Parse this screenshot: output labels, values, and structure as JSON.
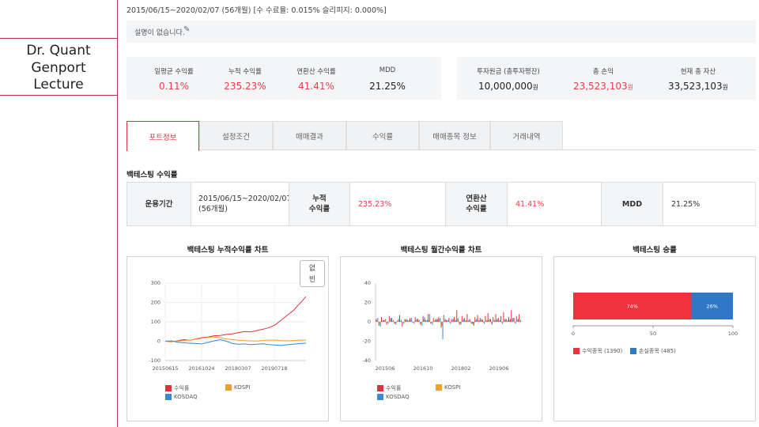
{
  "sidebar": {
    "lecture_lines": [
      "Dr. Quant",
      "Genport",
      "Lecture"
    ]
  },
  "header": {
    "period_text": "2015/06/15~2020/02/07 (56개월) [수 수료율: 0.015% 슬리피지: 0.000%]",
    "description": "설명이 없습니다.",
    "pencil_icon": "pencil-icon"
  },
  "summary_left": [
    {
      "label": "일평균 수익률",
      "value": "0.11%",
      "color": "red"
    },
    {
      "label": "누적 수익률",
      "value": "235.23%",
      "color": "red"
    },
    {
      "label": "연환산 수익률",
      "value": "41.41%",
      "color": "red"
    },
    {
      "label": "MDD",
      "value": "21.25%",
      "color": "dark"
    }
  ],
  "summary_right": [
    {
      "label": "투자원금 (총투자평잔)",
      "value": "10,000,000",
      "unit": "원",
      "color": "dark"
    },
    {
      "label": "총 손익",
      "value": "23,523,103",
      "unit": "원",
      "color": "red"
    },
    {
      "label": "현재 총 자산",
      "value": "33,523,103",
      "unit": "원",
      "color": "dark"
    }
  ],
  "tabs": [
    "포트정보",
    "설정조건",
    "매매결과",
    "수익률",
    "매매종목 정보",
    "거래내역"
  ],
  "active_tab": "포트정보",
  "section_title": "백테스팅 수익률",
  "backtest_table": {
    "period_label": "운용기간",
    "period_value": "2015/06/15~2020/02/07",
    "period_months": "(56개월)",
    "cum_label_1": "누적",
    "cum_label_2": "수익률",
    "cum_value": "235.23%",
    "ann_label_1": "연환산",
    "ann_label_2": "수익률",
    "ann_value": "41.41%",
    "mdd_label": "MDD",
    "mdd_value": "21.25%"
  },
  "charts": {
    "cumulative_title": "백테스팅 누적수익률 차트",
    "monthly_title": "백테스팅 월간수익률 차트",
    "winrate_title": "백테스팅 승률",
    "zoom_label_1": "없",
    "zoom_label_2": "빈",
    "colors": {
      "returns": "#e0323e",
      "kospi": "#f0a030",
      "kosdaq": "#3a8ad0",
      "win": "#f0323e",
      "loss": "#2f78c8"
    }
  },
  "chart_data": [
    {
      "type": "line",
      "title": "백테스팅 누적수익률 차트",
      "x_ticks": [
        "20150615",
        "20161024",
        "20180307",
        "20190718"
      ],
      "y_ticks": [
        "300",
        "200",
        "100",
        "0",
        "-100"
      ],
      "ylim": [
        -100,
        300
      ],
      "series": [
        {
          "name": "수익률",
          "values": [
            0,
            -3,
            2,
            8,
            5,
            12,
            18,
            22,
            28,
            30,
            35,
            38,
            45,
            50,
            48,
            55,
            62,
            70,
            85,
            110,
            135,
            160,
            195,
            230
          ]
        },
        {
          "name": "KOSPI",
          "values": [
            0,
            -2,
            0,
            3,
            6,
            10,
            15,
            20,
            22,
            18,
            12,
            8,
            5,
            3,
            2,
            1,
            4,
            6,
            5,
            3,
            2,
            4,
            5,
            6
          ]
        },
        {
          "name": "KOSDAQ",
          "values": [
            0,
            2,
            -5,
            -8,
            -10,
            -12,
            -14,
            -6,
            2,
            8,
            0,
            -12,
            -16,
            -14,
            -18,
            -15,
            -13,
            -17,
            -20,
            -22,
            -18,
            -15,
            -12,
            -10
          ]
        }
      ]
    },
    {
      "type": "bar",
      "title": "백테스팅 월간수익률 차트",
      "x_ticks": [
        "201506",
        "201610",
        "201802",
        "201906"
      ],
      "y_ticks": [
        "40",
        "20",
        "0",
        "-20",
        "-40"
      ],
      "ylim": [
        -40,
        40
      ],
      "series": [
        {
          "name": "수익률",
          "values": [
            3,
            -4,
            5,
            2,
            -3,
            6,
            4,
            -2,
            1,
            7,
            -5,
            3,
            2,
            4,
            -1,
            5,
            3,
            -3,
            6,
            2,
            8,
            -2,
            4,
            3,
            5,
            -6,
            7,
            2,
            4,
            3,
            5,
            12,
            -3,
            6,
            4,
            8,
            3,
            -2,
            5,
            7,
            4,
            2,
            6,
            9,
            3,
            5,
            8,
            4,
            6,
            10,
            3,
            5,
            12,
            4,
            6,
            8
          ]
        },
        {
          "name": "KOSPI",
          "values": [
            2,
            -3,
            1,
            2,
            -1,
            3,
            1,
            -2,
            2,
            1,
            -1,
            2,
            1,
            3,
            -1,
            2,
            1,
            -2,
            3,
            1,
            2,
            -1,
            1,
            2,
            3,
            -4,
            2,
            1,
            -1,
            2,
            1,
            3,
            -2,
            2,
            1,
            1,
            -1,
            -3,
            2,
            1,
            2,
            -1,
            1,
            2,
            -2,
            1,
            2,
            1,
            -1,
            2,
            1,
            2,
            3,
            -1,
            2,
            1
          ]
        },
        {
          "name": "KOSDAQ",
          "values": [
            4,
            -5,
            2,
            3,
            -2,
            4,
            2,
            -3,
            3,
            2,
            -2,
            3,
            2,
            4,
            -2,
            3,
            2,
            -4,
            5,
            2,
            8,
            -3,
            2,
            3,
            4,
            -18,
            3,
            2,
            -2,
            3,
            2,
            4,
            -3,
            3,
            2,
            2,
            -2,
            -4,
            3,
            2,
            3,
            -2,
            2,
            3,
            -3,
            2,
            3,
            2,
            -2,
            3,
            2,
            3,
            4,
            -2,
            3,
            2
          ]
        }
      ]
    },
    {
      "type": "bar",
      "title": "백테스팅 승률",
      "orientation": "horizontal-stacked",
      "x_ticks": [
        "0",
        "50",
        "100"
      ],
      "xlim": [
        0,
        100
      ],
      "segments": [
        {
          "label": "74%",
          "value": 74,
          "legend": "수익종목 (1390)",
          "color": "#f0323e"
        },
        {
          "label": "26%",
          "value": 26,
          "legend": "손실종목 (485)",
          "color": "#2f78c8"
        }
      ]
    }
  ]
}
